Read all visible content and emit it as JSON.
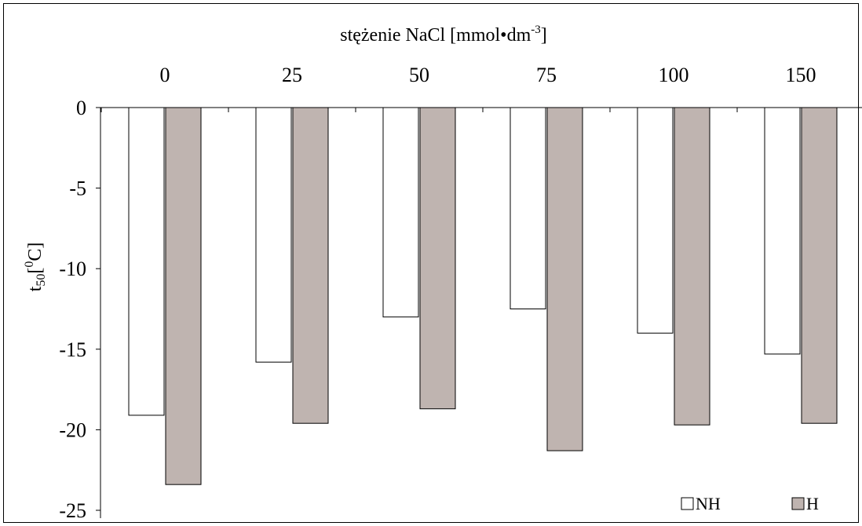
{
  "chart_data": {
    "type": "bar",
    "xlabel_main": "stężenie NaCl [mmol•dm",
    "xlabel_sup": "-3",
    "xlabel_tail": "]",
    "ylabel_main": "t",
    "ylabel_sub": "50",
    "ylabel_bracket": "[",
    "ylabel_sup": "0",
    "ylabel_unit": "C]",
    "categories": [
      "0",
      "25",
      "50",
      "75",
      "100",
      "150"
    ],
    "series": [
      {
        "name": "NH",
        "color": "#ffffff",
        "values": [
          -19.1,
          -15.8,
          -13.0,
          -12.5,
          -14.0,
          -15.3
        ]
      },
      {
        "name": "H",
        "color": "#bfb4b0",
        "values": [
          -23.4,
          -19.6,
          -18.7,
          -21.3,
          -19.7,
          -19.6
        ]
      }
    ],
    "ylim": [
      -25,
      0
    ],
    "yticks": [
      "0",
      "-5",
      "-10",
      "-15",
      "-20",
      "-25"
    ],
    "x_axis_position": "top",
    "grid": false,
    "legend_position": "bottom-right"
  }
}
